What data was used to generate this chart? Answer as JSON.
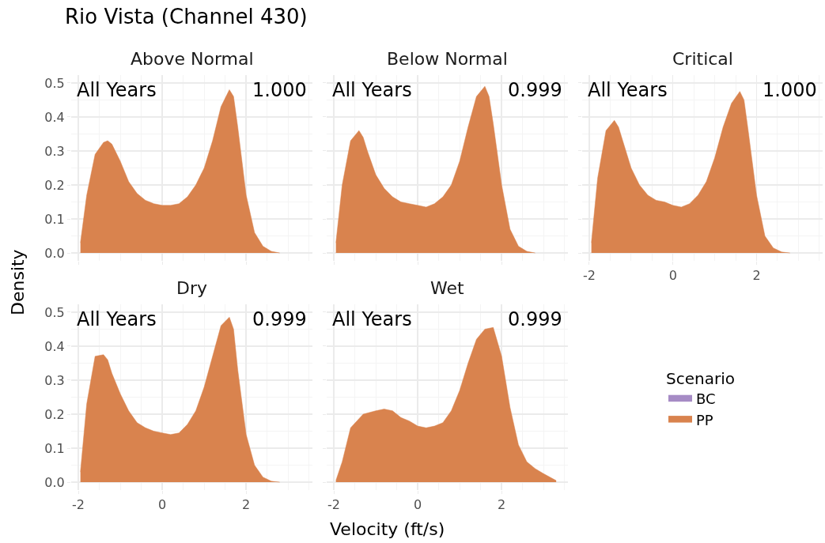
{
  "chart_data": [
    {
      "type": "area",
      "title": "Rio Vista (Channel 430)",
      "subtitle": "Above Normal",
      "ylabel": "Density",
      "legend_title": "Scenario",
      "annotations": [
        "All Years",
        "1.000"
      ],
      "tick_labels": "y",
      "grid": true,
      "legend": "right",
      "xlim": [
        -2.17,
        3.58
      ],
      "ylim": [
        -0.023,
        0.523
      ],
      "xticks": [
        -2,
        0,
        2
      ],
      "yticks": [
        {
          "value": 0,
          "label": "0.0"
        },
        0.1,
        0.2,
        0.3,
        0.4,
        0.5
      ],
      "x": [
        -1.95,
        -1.8,
        -1.6,
        -1.4,
        -1.3,
        -1.2,
        -1.0,
        -0.8,
        -0.6,
        -0.4,
        -0.2,
        0,
        0.2,
        0.4,
        0.6,
        0.8,
        1.0,
        1.2,
        1.4,
        1.6,
        1.7,
        1.8,
        2.0,
        2.2,
        2.4,
        2.6,
        2.8
      ],
      "series": [
        {
          "name": "BC",
          "color": "#a68bc5",
          "values": [
            null,
            null,
            null,
            null,
            null,
            null,
            null,
            null,
            null,
            null,
            null,
            null,
            null,
            null,
            null,
            null,
            null,
            null,
            null,
            null,
            null,
            null,
            null,
            null,
            null,
            null,
            null
          ]
        },
        {
          "name": "PP",
          "color": "#d9834e",
          "values": [
            0.03,
            0.17,
            0.29,
            0.325,
            0.33,
            0.32,
            0.27,
            0.21,
            0.175,
            0.155,
            0.145,
            0.14,
            0.14,
            0.145,
            0.165,
            0.2,
            0.25,
            0.33,
            0.43,
            0.48,
            0.46,
            0.37,
            0.17,
            0.06,
            0.02,
            0.005,
            0
          ]
        }
      ]
    },
    {
      "type": "area",
      "subtitle": "Below Normal",
      "annotations": [
        "All Years",
        "0.999"
      ],
      "tick_labels": false,
      "grid": true,
      "xlim": [
        -2.17,
        3.58
      ],
      "ylim": [
        -0.023,
        0.523
      ],
      "xticks": [
        -2,
        0,
        2
      ],
      "yticks": [
        0,
        0.1,
        0.2,
        0.3,
        0.4,
        0.5
      ],
      "x": [
        -1.95,
        -1.8,
        -1.6,
        -1.4,
        -1.3,
        -1.2,
        -1.0,
        -0.8,
        -0.6,
        -0.4,
        -0.2,
        0,
        0.2,
        0.4,
        0.6,
        0.8,
        1.0,
        1.2,
        1.4,
        1.6,
        1.7,
        1.8,
        2.0,
        2.2,
        2.4,
        2.6,
        2.8
      ],
      "series": [
        {
          "color": "#d9834e",
          "values": [
            0.03,
            0.2,
            0.33,
            0.36,
            0.34,
            0.3,
            0.23,
            0.19,
            0.165,
            0.15,
            0.145,
            0.14,
            0.135,
            0.145,
            0.165,
            0.2,
            0.27,
            0.37,
            0.46,
            0.49,
            0.46,
            0.38,
            0.2,
            0.07,
            0.02,
            0.005,
            0
          ]
        }
      ]
    },
    {
      "type": "area",
      "subtitle": "Critical",
      "annotations": [
        "All Years",
        "1.000"
      ],
      "tick_labels": "x",
      "grid": true,
      "xlim": [
        -2.17,
        3.58
      ],
      "ylim": [
        -0.023,
        0.523
      ],
      "xticks": [
        -2,
        0,
        2
      ],
      "yticks": [
        0,
        0.1,
        0.2,
        0.3,
        0.4,
        0.5
      ],
      "x": [
        -1.95,
        -1.8,
        -1.6,
        -1.4,
        -1.3,
        -1.2,
        -1.0,
        -0.8,
        -0.6,
        -0.4,
        -0.2,
        0,
        0.2,
        0.4,
        0.6,
        0.8,
        1.0,
        1.2,
        1.4,
        1.6,
        1.7,
        1.8,
        2.0,
        2.2,
        2.4,
        2.6,
        2.8
      ],
      "series": [
        {
          "color": "#d9834e",
          "values": [
            0.03,
            0.22,
            0.36,
            0.39,
            0.37,
            0.33,
            0.25,
            0.2,
            0.17,
            0.155,
            0.15,
            0.14,
            0.135,
            0.145,
            0.17,
            0.21,
            0.28,
            0.37,
            0.44,
            0.475,
            0.45,
            0.36,
            0.17,
            0.05,
            0.015,
            0.003,
            0
          ]
        }
      ]
    },
    {
      "type": "area",
      "subtitle": "Dry",
      "annotations": [
        "All Years",
        "0.999"
      ],
      "grid": true,
      "xlim": [
        -2.17,
        3.58
      ],
      "ylim": [
        -0.023,
        0.523
      ],
      "xticks": [
        -2,
        0,
        2
      ],
      "yticks": [
        {
          "value": 0,
          "label": "0.0"
        },
        0.1,
        0.2,
        0.3,
        0.4,
        0.5
      ],
      "x": [
        -1.95,
        -1.8,
        -1.6,
        -1.4,
        -1.3,
        -1.2,
        -1.0,
        -0.8,
        -0.6,
        -0.4,
        -0.2,
        0,
        0.2,
        0.4,
        0.6,
        0.8,
        1.0,
        1.2,
        1.4,
        1.6,
        1.7,
        1.8,
        2.0,
        2.2,
        2.4,
        2.6,
        2.8
      ],
      "series": [
        {
          "color": "#d9834e",
          "values": [
            0.03,
            0.23,
            0.37,
            0.375,
            0.36,
            0.32,
            0.26,
            0.21,
            0.175,
            0.16,
            0.15,
            0.145,
            0.14,
            0.145,
            0.17,
            0.21,
            0.28,
            0.37,
            0.46,
            0.485,
            0.45,
            0.33,
            0.14,
            0.05,
            0.015,
            0.003,
            0
          ]
        }
      ]
    },
    {
      "type": "area",
      "subtitle": "Wet",
      "xlabel": "Velocity (ft/s)",
      "annotations": [
        "All Years",
        "0.999"
      ],
      "tick_labels": "x",
      "grid": true,
      "xlim": [
        -2.17,
        3.58
      ],
      "ylim": [
        -0.023,
        0.523
      ],
      "xticks": [
        -2,
        0,
        2
      ],
      "yticks": [
        0,
        0.1,
        0.2,
        0.3,
        0.4,
        0.5
      ],
      "x": [
        -1.95,
        -1.8,
        -1.6,
        -1.3,
        -1.0,
        -0.8,
        -0.6,
        -0.4,
        -0.2,
        0,
        0.2,
        0.4,
        0.6,
        0.8,
        1.0,
        1.2,
        1.4,
        1.6,
        1.8,
        2.0,
        2.2,
        2.4,
        2.6,
        2.8,
        3.0,
        3.3
      ],
      "series": [
        {
          "color": "#d9834e",
          "values": [
            0.005,
            0.06,
            0.16,
            0.2,
            0.21,
            0.215,
            0.21,
            0.19,
            0.18,
            0.165,
            0.16,
            0.165,
            0.175,
            0.21,
            0.27,
            0.35,
            0.42,
            0.45,
            0.455,
            0.37,
            0.22,
            0.11,
            0.06,
            0.04,
            0.025,
            0.005
          ]
        }
      ]
    }
  ]
}
